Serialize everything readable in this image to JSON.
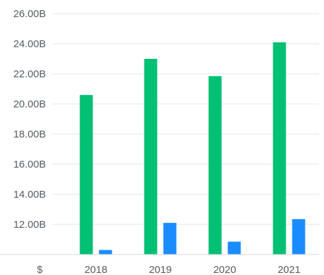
{
  "chart_data": {
    "type": "bar",
    "currency_label": "$",
    "categories": [
      "2018",
      "2019",
      "2020",
      "2021"
    ],
    "series": [
      {
        "color": "#00c073",
        "values": [
          20.6,
          23.0,
          21.85,
          24.1
        ]
      },
      {
        "color": "#1a8cff",
        "values": [
          10.3,
          12.1,
          10.85,
          12.35
        ]
      }
    ],
    "ylim": [
      10.0,
      26.0
    ],
    "y_ticks": [
      {
        "value": 12,
        "label": "12.00B"
      },
      {
        "value": 14,
        "label": "14.00B"
      },
      {
        "value": 16,
        "label": "16.00B"
      },
      {
        "value": 18,
        "label": "18.00B"
      },
      {
        "value": 20,
        "label": "20.00B"
      },
      {
        "value": 22,
        "label": "22.00B"
      },
      {
        "value": 24,
        "label": "24.00B"
      },
      {
        "value": 26,
        "label": "26.00B"
      }
    ],
    "grid": true,
    "legend": "none"
  }
}
